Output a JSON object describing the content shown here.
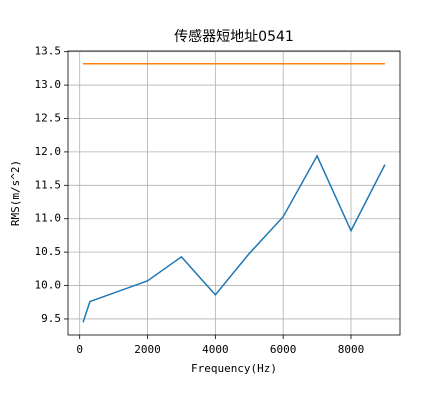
{
  "chart_data": {
    "type": "line",
    "title": "传感器短地址0541",
    "xlabel": "Frequency(Hz)",
    "ylabel": "RMS(m/s^2)",
    "series": [
      {
        "color": "#1f77b4",
        "x": [
          100,
          300,
          2000,
          3000,
          4000,
          5000,
          6000,
          7000,
          8000,
          9000
        ],
        "values": [
          9.45,
          9.76,
          10.07,
          10.43,
          9.86,
          10.48,
          11.03,
          11.94,
          10.82,
          11.81
        ]
      },
      {
        "color": "#ff7f0e",
        "x": [
          100,
          9000
        ],
        "values": [
          13.32,
          13.32
        ]
      }
    ],
    "xlim": [
      -345,
      9445
    ],
    "ylim": [
      9.26,
      13.51
    ],
    "xticks": [
      0,
      2000,
      4000,
      6000,
      8000
    ],
    "yticks": [
      9.5,
      {
        "value": 10,
        "label": "10.0"
      },
      10.5,
      {
        "value": 11,
        "label": "11.0"
      },
      11.5,
      {
        "value": 12,
        "label": "12.0"
      },
      12.5,
      {
        "value": 13,
        "label": "13.0"
      },
      13.5
    ],
    "grid": true
  }
}
